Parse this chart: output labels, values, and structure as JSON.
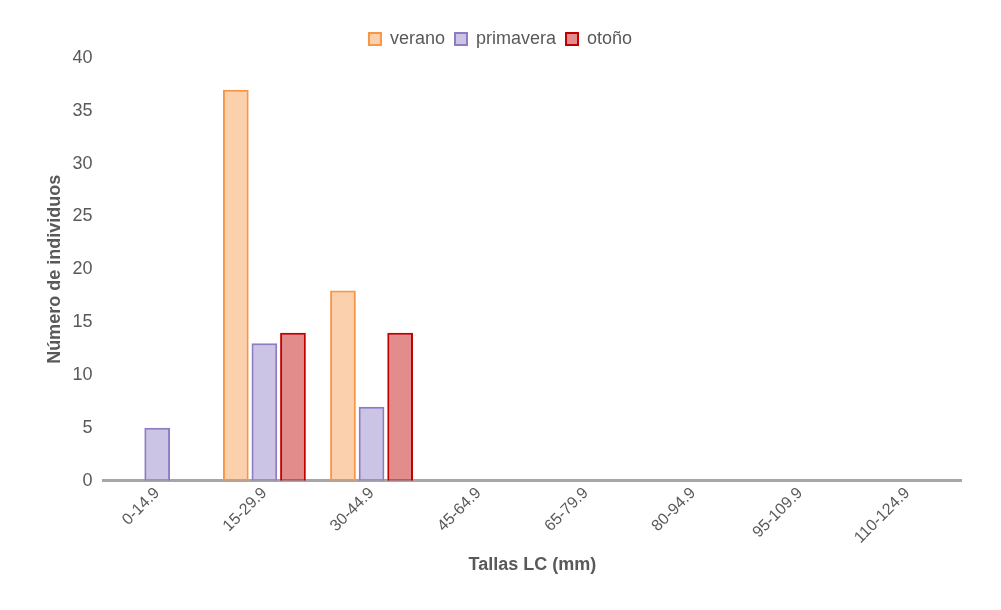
{
  "chart_data": {
    "type": "bar",
    "xlabel": "Tallas LC (mm)",
    "ylabel": "Número de individuos",
    "categories": [
      "0-14.9",
      "15-29.9",
      "30-44.9",
      "45-64.9",
      "65-79.9",
      "80-94.9",
      "95-109.9",
      "110-124.9"
    ],
    "series": [
      {
        "name": "verano",
        "color": "#f79646",
        "values": [
          0,
          37,
          18,
          0,
          0,
          0,
          0,
          0
        ]
      },
      {
        "name": "primavera",
        "color": "#8e7cc3",
        "values": [
          5,
          13,
          7,
          0,
          0,
          0,
          0,
          0
        ]
      },
      {
        "name": "otoño",
        "color": "#c00000",
        "values": [
          0,
          14,
          14,
          0,
          0,
          0,
          0,
          0
        ]
      }
    ],
    "ylim": [
      0,
      40
    ],
    "yticks": [
      0,
      5,
      10,
      15,
      20,
      25,
      30,
      35,
      40
    ],
    "grid": false,
    "legend": "top"
  }
}
